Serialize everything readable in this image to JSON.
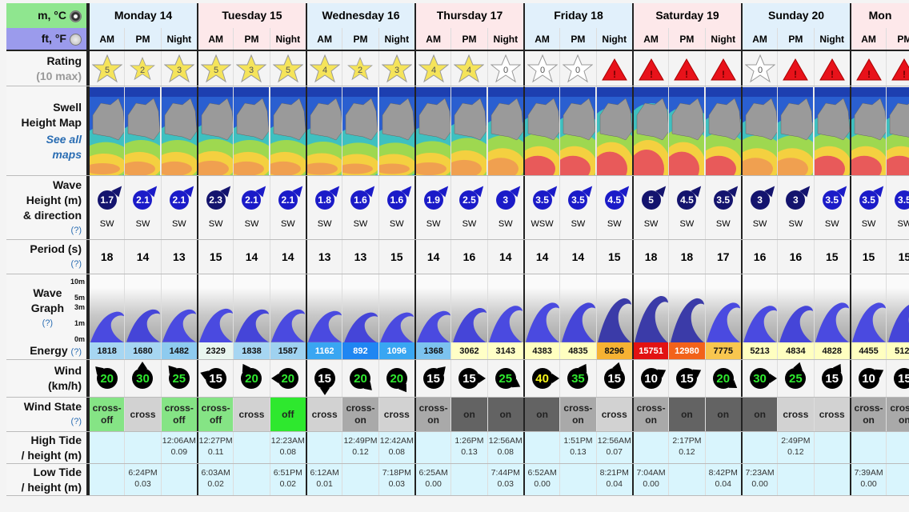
{
  "units": {
    "metric": {
      "label": "m, °C",
      "selected": true,
      "color": "#8fe68f"
    },
    "imperial": {
      "label": "ft, °F",
      "selected": false,
      "color": "#9b9bec"
    }
  },
  "days": [
    {
      "label": "Monday 14"
    },
    {
      "label": "Tuesday 15"
    },
    {
      "label": "Wednesday 16"
    },
    {
      "label": "Thursday 17"
    },
    {
      "label": "Friday 18"
    },
    {
      "label": "Saturday 19"
    },
    {
      "label": "Sunday 20"
    },
    {
      "label": "Mon"
    }
  ],
  "periods": [
    "AM",
    "PM",
    "Night",
    "AM",
    "PM",
    "Night",
    "AM",
    "PM",
    "Night",
    "AM",
    "PM",
    "Night",
    "AM",
    "PM",
    "Night",
    "AM",
    "PM",
    "Night",
    "AM",
    "PM",
    "Night",
    "AM",
    "PM"
  ],
  "labels": {
    "rating": "Rating",
    "rating_sub": "(10 max)",
    "map1": "Swell",
    "map2": "Height Map",
    "see_all1": "See all",
    "see_all2": "maps",
    "wave1": "Wave",
    "wave2": "Height (m)",
    "wave3": "& direction",
    "period": "Period (s)",
    "graph1": "Wave",
    "graph2": "Graph",
    "energy": "Energy",
    "wind1": "Wind",
    "wind2": "(km/h)",
    "windstate": "Wind State",
    "high1": "High Tide",
    "high2": "/ height (m)",
    "low1": "Low Tide",
    "low2": "/ height (m)",
    "help": "(?)",
    "scale": [
      "10m",
      "5m",
      "3m",
      "1m",
      "0m"
    ]
  },
  "ratings": [
    "5",
    "2",
    "3",
    "5",
    "3",
    "5",
    "4",
    "2",
    "3",
    "4",
    "4",
    "0",
    "0",
    "0",
    "!",
    "!",
    "!",
    "!",
    "0",
    "!",
    "!",
    "!",
    "!"
  ],
  "wave_heights": [
    "1.7",
    "2.1",
    "2.1",
    "2.3",
    "2.1",
    "2.1",
    "1.8",
    "1.6",
    "1.6",
    "1.9",
    "2.5",
    "3",
    "3.5",
    "3.5",
    "4.5",
    "5",
    "4.5",
    "3.5",
    "3",
    "3",
    "3.5",
    "3.5",
    "3.5"
  ],
  "wave_dirs": [
    "SW",
    "SW",
    "SW",
    "SW",
    "SW",
    "SW",
    "SW",
    "SW",
    "SW",
    "SW",
    "SW",
    "SW",
    "WSW",
    "SW",
    "SW",
    "SW",
    "SW",
    "SW",
    "SW",
    "SW",
    "SW",
    "SW",
    "SW"
  ],
  "periods_s": [
    "18",
    "14",
    "13",
    "15",
    "14",
    "14",
    "13",
    "13",
    "15",
    "14",
    "16",
    "14",
    "14",
    "14",
    "15",
    "18",
    "18",
    "17",
    "16",
    "16",
    "15",
    "15",
    "15"
  ],
  "energy": [
    [
      "1818",
      "#a6d6f2"
    ],
    [
      "1680",
      "#a6d6f2"
    ],
    [
      "1482",
      "#8ecbef"
    ],
    [
      "2329",
      "#e9f6ef"
    ],
    [
      "1838",
      "#a6d6f2"
    ],
    [
      "1587",
      "#9fd2f0"
    ],
    [
      "1162",
      "#39a6f2"
    ],
    [
      "892",
      "#1f86f2"
    ],
    [
      "1096",
      "#39a6f2"
    ],
    [
      "1368",
      "#7cc3ef"
    ],
    [
      "3062",
      "#ffffc6"
    ],
    [
      "3143",
      "#ffffc6"
    ],
    [
      "4383",
      "#ffffc0"
    ],
    [
      "4835",
      "#ffffc0"
    ],
    [
      "8296",
      "#f6b233"
    ],
    [
      "15751",
      "#e21212"
    ],
    [
      "12980",
      "#f2621a"
    ],
    [
      "7775",
      "#f8c64f"
    ],
    [
      "5213",
      "#ffffc0"
    ],
    [
      "4834",
      "#ffffc0"
    ],
    [
      "4828",
      "#ffffc0"
    ],
    [
      "4455",
      "#ffffc0"
    ],
    [
      "5127",
      "#ffffc0"
    ]
  ],
  "wind": [
    [
      "20",
      315
    ],
    [
      "30",
      0
    ],
    [
      "25",
      320
    ],
    [
      "15",
      290
    ],
    [
      "20",
      330
    ],
    [
      "20",
      270
    ],
    [
      "15",
      180
    ],
    [
      "20",
      135
    ],
    [
      "20",
      145
    ],
    [
      "15",
      45
    ],
    [
      "15",
      90
    ],
    [
      "25",
      120
    ],
    [
      "40",
      90
    ],
    [
      "35",
      30
    ],
    [
      "15",
      15
    ],
    [
      "10",
      60
    ],
    [
      "15",
      60
    ],
    [
      "20",
      125
    ],
    [
      "30",
      90
    ],
    [
      "25",
      15
    ],
    [
      "15",
      30
    ],
    [
      "10",
      60
    ],
    [
      "15",
      60
    ]
  ],
  "wind_state": [
    "cross-off",
    "cross",
    "cross-off",
    "cross-off",
    "cross",
    "off",
    "cross",
    "cross-on",
    "cross",
    "cross-on",
    "on",
    "on",
    "on",
    "cross-on",
    "cross",
    "cross-on",
    "on",
    "on",
    "on",
    "cross",
    "cross",
    "cross-on",
    "cross-on"
  ],
  "wind_state_colors": {
    "cross-off": "#85e485",
    "off": "#2ee82e",
    "cross": "#d2d2d2",
    "cross-on": "#a9a9a9",
    "on": "#636363"
  },
  "high_tide": [
    null,
    null,
    [
      "12:06AM",
      "0.09"
    ],
    [
      "12:27PM",
      "0.11"
    ],
    null,
    [
      "12:23AM",
      "0.08"
    ],
    null,
    [
      "12:49PM",
      "0.12"
    ],
    [
      "12:42AM",
      "0.08"
    ],
    null,
    [
      "1:26PM",
      "0.13"
    ],
    [
      "12:56AM",
      "0.08"
    ],
    null,
    [
      "1:51PM",
      "0.13"
    ],
    [
      "12:56AM",
      "0.07"
    ],
    null,
    [
      "2:17PM",
      "0.12"
    ],
    null,
    null,
    [
      "2:49PM",
      "0.12"
    ],
    null,
    null,
    null
  ],
  "low_tide": [
    null,
    [
      "6:24PM",
      "0.03"
    ],
    null,
    [
      "6:03AM",
      "0.02"
    ],
    null,
    [
      "6:51PM",
      "0.02"
    ],
    [
      "6:12AM",
      "0.01"
    ],
    null,
    [
      "7:18PM",
      "0.03"
    ],
    [
      "6:25AM",
      "0.00"
    ],
    null,
    [
      "7:44PM",
      "0.03"
    ],
    [
      "6:52AM",
      "0.00"
    ],
    null,
    [
      "8:21PM",
      "0.04"
    ],
    [
      "7:04AM",
      "0.00"
    ],
    null,
    [
      "8:42PM",
      "0.04"
    ],
    [
      "7:23AM",
      "0.00"
    ],
    null,
    null,
    [
      "7:39AM",
      "0.00"
    ],
    null
  ]
}
